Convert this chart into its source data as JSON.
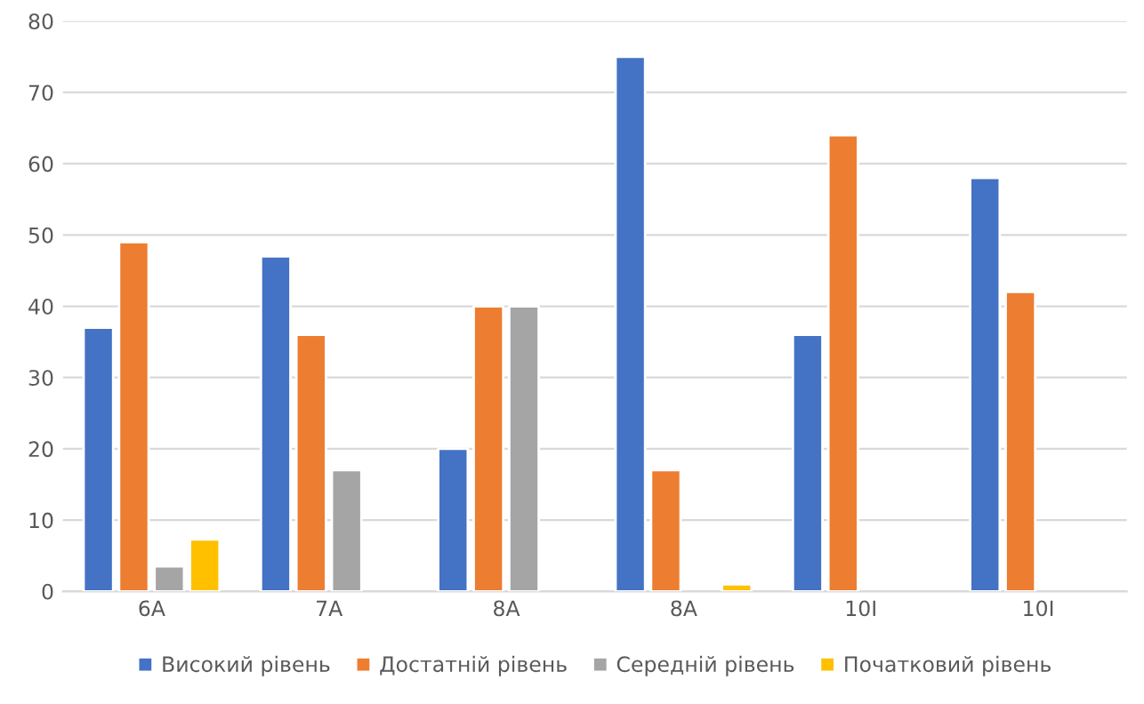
{
  "chart_data": {
    "type": "bar",
    "categories": [
      "6A",
      "7A",
      "8A",
      "8A",
      "10І",
      "10І"
    ],
    "series": [
      {
        "name": "Високий рівень",
        "color": "#4472c4",
        "values": [
          37,
          47,
          20,
          75,
          36,
          58
        ]
      },
      {
        "name": "Достатній рівень",
        "color": "#ed7d31",
        "values": [
          49,
          36,
          40,
          17,
          64,
          42
        ]
      },
      {
        "name": "Середній рівень",
        "color": "#a5a5a5",
        "values": [
          3.5,
          17,
          40,
          null,
          null,
          null
        ]
      },
      {
        "name": "Початковий рівень",
        "color": "#ffc000",
        "values": [
          7.3,
          null,
          null,
          1,
          null,
          null
        ]
      }
    ],
    "ylim": [
      0,
      80
    ],
    "yticks": [
      0,
      10,
      20,
      30,
      40,
      50,
      60,
      70,
      80
    ],
    "grid": "y",
    "legend": "bottom"
  }
}
